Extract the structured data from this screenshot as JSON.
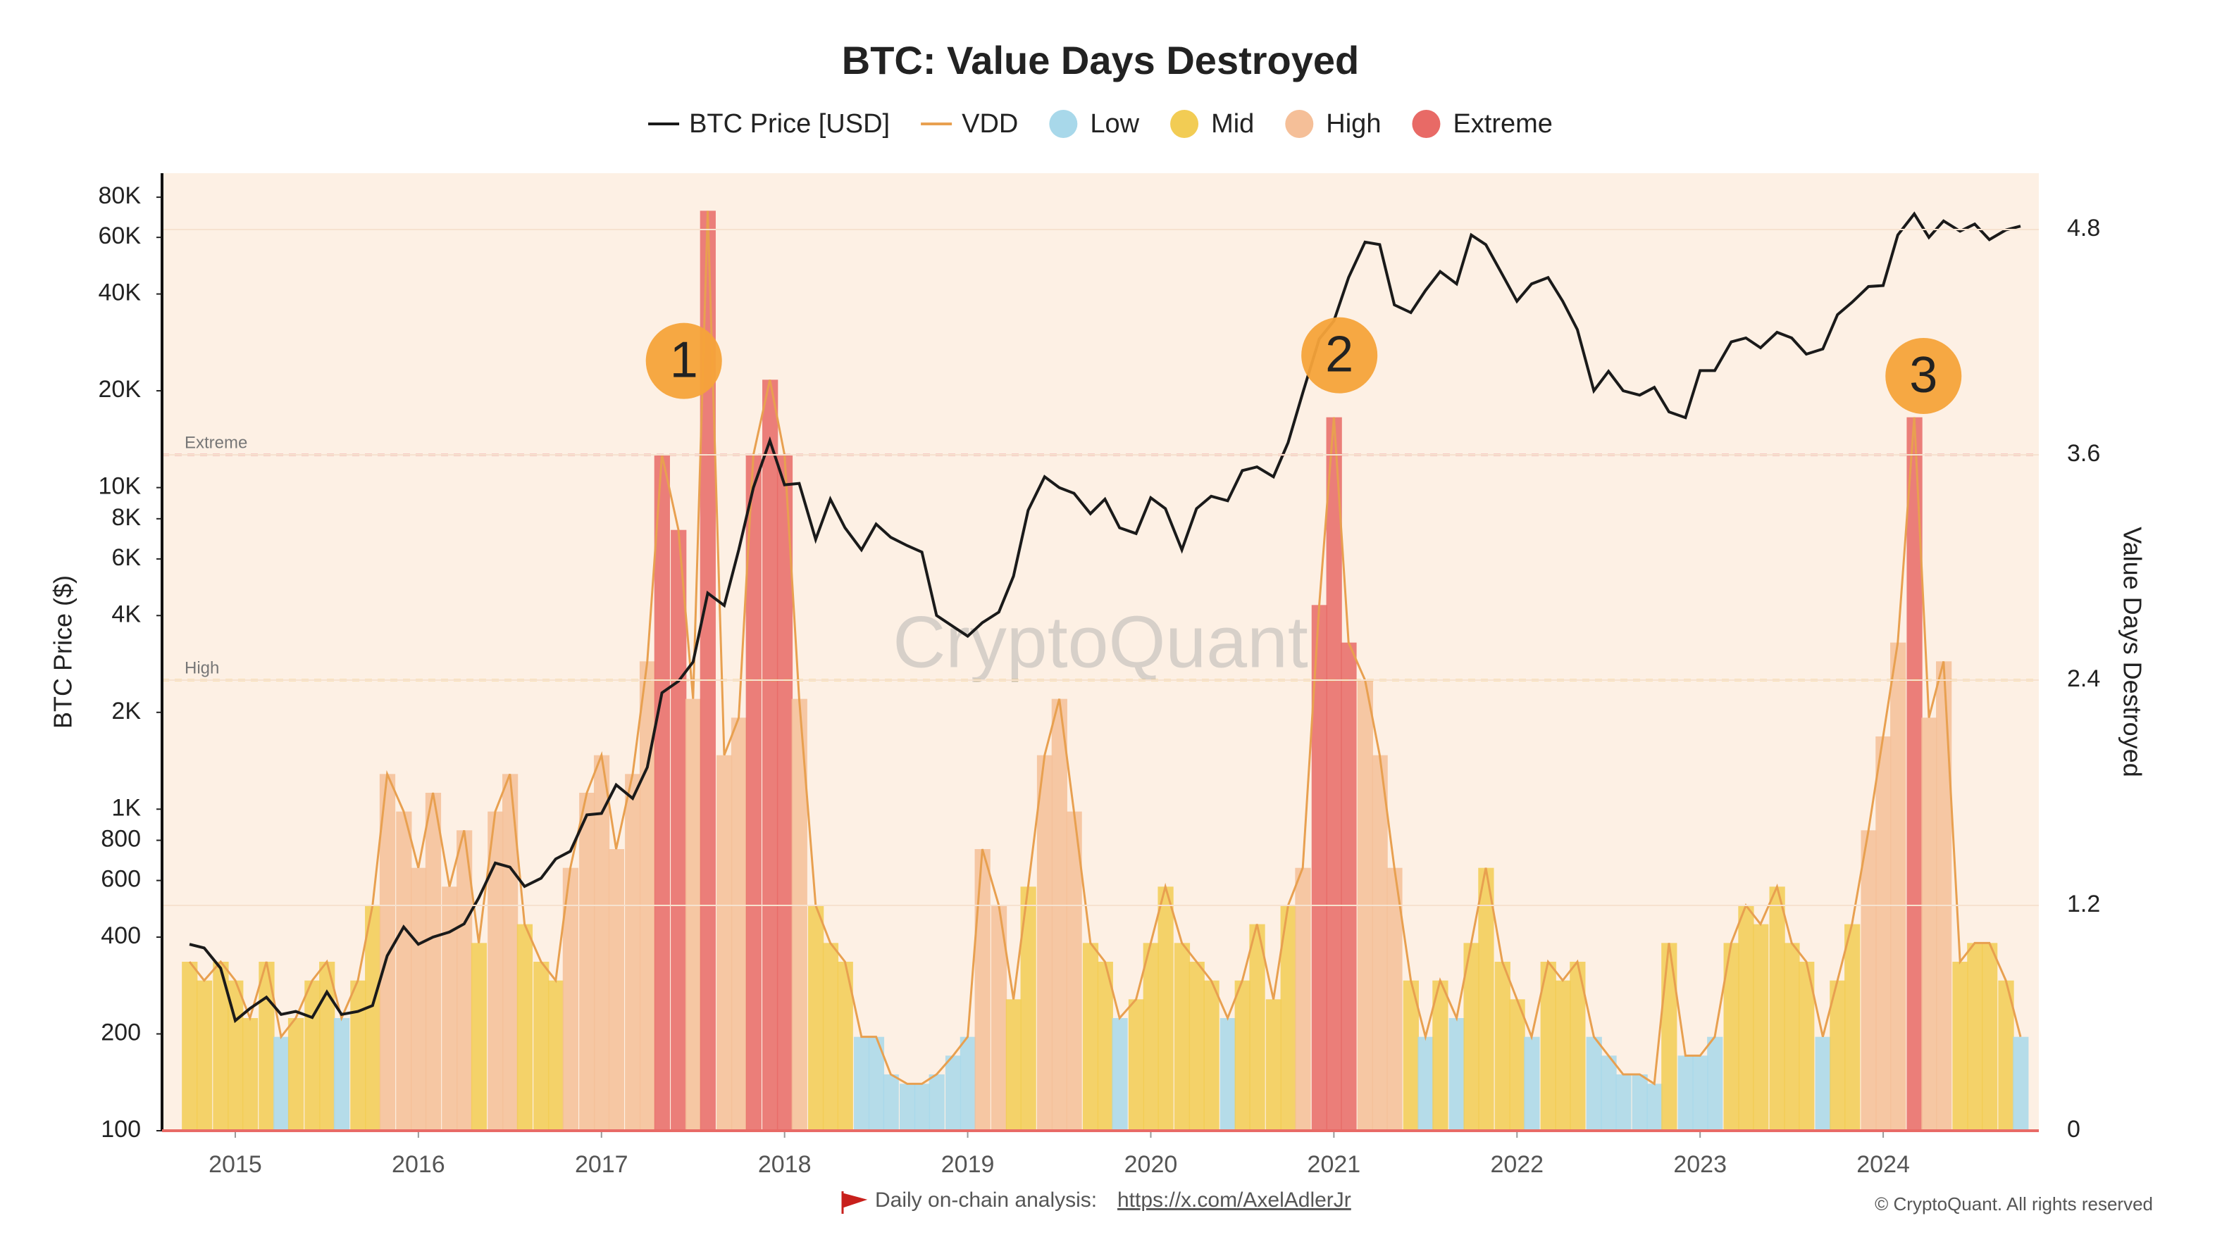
{
  "chart_data": {
    "type": "line",
    "title": "BTC: Value Days Destroyed",
    "y_label": "BTC Price ($)",
    "y2_label": "Value Days Destroyed",
    "watermark": "CryptoQuant",
    "footer": {
      "text": "Daily on-chain analysis:",
      "link": "https://x.com/AxelAdlerJr",
      "copyright": "© CryptoQuant. All rights reserved"
    },
    "ylog": true,
    "xlim": [
      2014.6,
      2024.85
    ],
    "xticks": [
      2015,
      2016,
      2017,
      2018,
      2019,
      2020,
      2021,
      2022,
      2023,
      2024
    ],
    "ylim": [
      100,
      95000
    ],
    "yticks": [
      100,
      200,
      400,
      600,
      800,
      {
        "value": 1000,
        "label": "1K"
      },
      {
        "value": 2000,
        "label": "2K"
      },
      {
        "value": 4000,
        "label": "4K"
      },
      {
        "value": 6000,
        "label": "6K"
      },
      {
        "value": 8000,
        "label": "8K"
      },
      {
        "value": 10000,
        "label": "10K"
      },
      {
        "value": 20000,
        "label": "20K"
      },
      {
        "value": 40000,
        "label": "40K"
      },
      {
        "value": 60000,
        "label": "60K"
      },
      {
        "value": 80000,
        "label": "80K"
      }
    ],
    "y2lim": [
      0,
      5.1
    ],
    "y2ticks": [
      0,
      1.2,
      2.4,
      3.6,
      4.8
    ],
    "levels": [
      {
        "name": "Low",
        "color": "#a8d8ea"
      },
      {
        "name": "Mid",
        "color": "#f2cc54"
      },
      {
        "name": "High",
        "color": "#f5bf98"
      },
      {
        "name": "Extreme",
        "color": "#e86a66"
      }
    ],
    "thresholds": [
      {
        "label": "Extreme",
        "value": 3.6,
        "color": "#e05a5a"
      },
      {
        "label": "High",
        "value": 2.4,
        "color": "#e8b030"
      }
    ],
    "annotations": [
      {
        "text": "1",
        "x": 2017.45,
        "y": 4.1
      },
      {
        "text": "2",
        "x": 2021.03,
        "y": 4.13
      },
      {
        "text": "3",
        "x": 2024.22,
        "y": 4.02
      }
    ],
    "x": [
      2014.75,
      2014.83,
      2014.92,
      2015,
      2015.08,
      2015.17,
      2015.25,
      2015.33,
      2015.42,
      2015.5,
      2015.58,
      2015.67,
      2015.75,
      2015.83,
      2015.92,
      2016,
      2016.08,
      2016.17,
      2016.25,
      2016.33,
      2016.42,
      2016.5,
      2016.58,
      2016.67,
      2016.75,
      2016.83,
      2016.92,
      2017,
      2017.08,
      2017.17,
      2017.25,
      2017.33,
      2017.42,
      2017.5,
      2017.58,
      2017.67,
      2017.75,
      2017.83,
      2017.92,
      2018,
      2018.08,
      2018.17,
      2018.25,
      2018.33,
      2018.42,
      2018.5,
      2018.58,
      2018.67,
      2018.75,
      2018.83,
      2018.92,
      2019,
      2019.08,
      2019.17,
      2019.25,
      2019.33,
      2019.42,
      2019.5,
      2019.58,
      2019.67,
      2019.75,
      2019.83,
      2019.92,
      2020,
      2020.08,
      2020.17,
      2020.25,
      2020.33,
      2020.42,
      2020.5,
      2020.58,
      2020.67,
      2020.75,
      2020.83,
      2020.92,
      2021,
      2021.08,
      2021.17,
      2021.25,
      2021.33,
      2021.42,
      2021.5,
      2021.58,
      2021.67,
      2021.75,
      2021.83,
      2021.92,
      2022,
      2022.08,
      2022.17,
      2022.25,
      2022.33,
      2022.42,
      2022.5,
      2022.58,
      2022.67,
      2022.75,
      2022.83,
      2022.92,
      2023,
      2023.08,
      2023.17,
      2023.25,
      2023.33,
      2023.42,
      2023.5,
      2023.58,
      2023.67,
      2023.75,
      2023.83,
      2023.92,
      2024,
      2024.08,
      2024.17,
      2024.25,
      2024.33,
      2024.42,
      2024.5,
      2024.58,
      2024.67,
      2024.75
    ],
    "series": [
      {
        "name": "BTC Price [USD]",
        "color": "#1a1a1a",
        "values": [
          380,
          370,
          320,
          220,
          240,
          260,
          230,
          235,
          225,
          270,
          230,
          235,
          245,
          350,
          430,
          380,
          400,
          415,
          440,
          530,
          680,
          660,
          575,
          610,
          700,
          740,
          960,
          970,
          1190,
          1080,
          1350,
          2300,
          2500,
          2870,
          4700,
          4300,
          6400,
          10000,
          14000,
          10200,
          10300,
          6900,
          9200,
          7500,
          6400,
          7700,
          7000,
          6600,
          6300,
          4000,
          3700,
          3450,
          3800,
          4100,
          5300,
          8500,
          10800,
          10000,
          9600,
          8300,
          9200,
          7500,
          7200,
          9300,
          8600,
          6400,
          8600,
          9400,
          9100,
          11300,
          11600,
          10800,
          13800,
          19700,
          29000,
          33000,
          45000,
          58000,
          57000,
          37000,
          35000,
          41000,
          47000,
          43000,
          61000,
          57000,
          46000,
          38000,
          43000,
          45000,
          38000,
          31000,
          20000,
          23000,
          20000,
          19400,
          20500,
          17200,
          16500,
          23100,
          23100,
          28400,
          29200,
          27200,
          30400,
          29200,
          26000,
          27000,
          34500,
          37700,
          42200,
          42500,
          61000,
          71000,
          60000,
          67500,
          62700,
          66000,
          59000,
          63300,
          65000
        ]
      },
      {
        "name": "VDD",
        "color": "#e8a050",
        "axis": "y2",
        "values": [
          0.9,
          0.8,
          0.9,
          0.8,
          0.6,
          0.9,
          0.5,
          0.6,
          0.8,
          0.9,
          0.6,
          0.8,
          1.2,
          1.9,
          1.7,
          1.4,
          1.8,
          1.3,
          1.6,
          1.0,
          1.7,
          1.9,
          1.1,
          0.9,
          0.8,
          1.4,
          1.8,
          2.0,
          1.5,
          1.9,
          2.5,
          3.6,
          3.2,
          2.3,
          4.9,
          2.0,
          2.2,
          3.6,
          4.0,
          3.6,
          2.3,
          1.2,
          1.0,
          0.9,
          0.5,
          0.5,
          0.3,
          0.25,
          0.25,
          0.3,
          0.4,
          0.5,
          1.5,
          1.2,
          0.7,
          1.3,
          2.0,
          2.3,
          1.7,
          1.0,
          0.9,
          0.6,
          0.7,
          1.0,
          1.3,
          1.0,
          0.9,
          0.8,
          0.6,
          0.8,
          1.1,
          0.7,
          1.2,
          1.4,
          2.8,
          3.8,
          2.6,
          2.4,
          2.0,
          1.4,
          0.8,
          0.5,
          0.8,
          0.6,
          1.0,
          1.4,
          0.9,
          0.7,
          0.5,
          0.9,
          0.8,
          0.9,
          0.5,
          0.4,
          0.3,
          0.3,
          0.25,
          1.0,
          0.4,
          0.4,
          0.5,
          1.0,
          1.2,
          1.1,
          1.3,
          1.0,
          0.9,
          0.5,
          0.8,
          1.1,
          1.6,
          2.1,
          2.6,
          3.8,
          2.2,
          2.5,
          0.9,
          1.0,
          1.0,
          0.8,
          0.5
        ],
        "levels": [
          "Mid",
          "Mid",
          "Mid",
          "Mid",
          "Mid",
          "Mid",
          "Low",
          "Mid",
          "Mid",
          "Mid",
          "Low",
          "Mid",
          "Mid",
          "High",
          "High",
          "High",
          "High",
          "High",
          "High",
          "Mid",
          "High",
          "High",
          "Mid",
          "Mid",
          "Mid",
          "High",
          "High",
          "High",
          "High",
          "High",
          "High",
          "Extreme",
          "Extreme",
          "High",
          "Extreme",
          "High",
          "High",
          "Extreme",
          "Extreme",
          "Extreme",
          "High",
          "Mid",
          "Mid",
          "Mid",
          "Low",
          "Low",
          "Low",
          "Low",
          "Low",
          "Low",
          "Low",
          "Low",
          "High",
          "High",
          "Mid",
          "Mid",
          "High",
          "High",
          "High",
          "Mid",
          "Mid",
          "Low",
          "Mid",
          "Mid",
          "Mid",
          "Mid",
          "Mid",
          "Mid",
          "Low",
          "Mid",
          "Mid",
          "Mid",
          "Mid",
          "High",
          "Extreme",
          "Extreme",
          "Extreme",
          "High",
          "High",
          "High",
          "Mid",
          "Low",
          "Mid",
          "Low",
          "Mid",
          "Mid",
          "Mid",
          "Mid",
          "Low",
          "Mid",
          "Mid",
          "Mid",
          "Low",
          "Low",
          "Low",
          "Low",
          "Low",
          "Mid",
          "Low",
          "Low",
          "Low",
          "Mid",
          "Mid",
          "Mid",
          "Mid",
          "Mid",
          "Mid",
          "Low",
          "Mid",
          "Mid",
          "High",
          "High",
          "High",
          "Extreme",
          "High",
          "High",
          "Mid",
          "Mid",
          "Mid",
          "Mid",
          "Low"
        ]
      }
    ]
  }
}
